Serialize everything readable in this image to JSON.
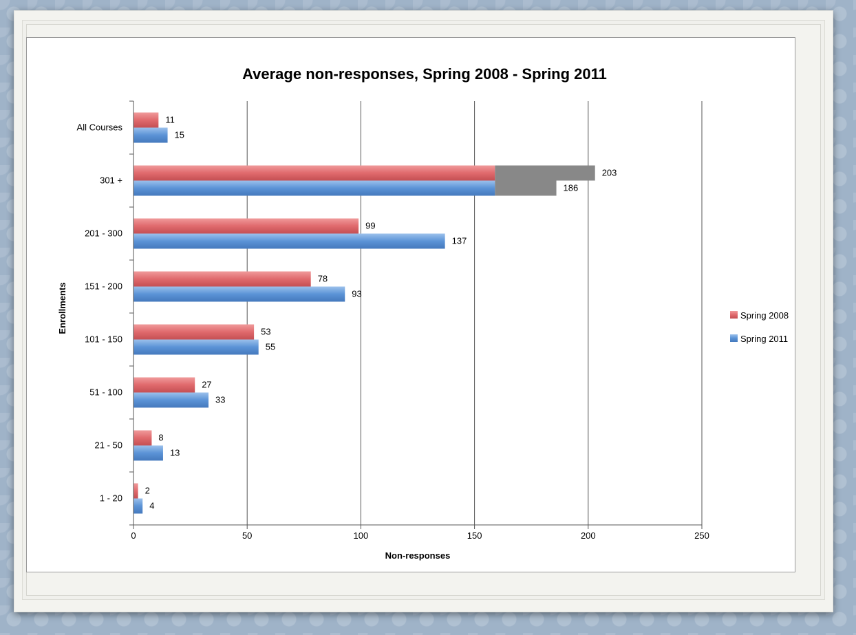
{
  "chart_data": {
    "type": "bar",
    "orientation": "horizontal",
    "title": "Average non-responses, Spring 2008 - Spring 2011",
    "xlabel": "Non-responses",
    "ylabel": "Enrollments",
    "xlim": [
      0,
      250
    ],
    "xticks": [
      "0",
      "50",
      "100",
      "150",
      "200",
      "250"
    ],
    "grid": "vertical",
    "legend_position": "right",
    "categories": [
      "All Courses",
      "301 +",
      "201 - 300",
      "151 - 200",
      "101 - 150",
      "51 - 100",
      "21 - 50",
      "1 -  20"
    ],
    "series": [
      {
        "name": "Spring 2008",
        "color": "#e06a6d",
        "values": [
          11,
          203,
          99,
          78,
          53,
          27,
          8,
          2
        ]
      },
      {
        "name": "Spring 2011",
        "color": "#5b93d6",
        "values": [
          15,
          186,
          137,
          93,
          55,
          33,
          13,
          4
        ]
      }
    ],
    "data_labels": [
      [
        "11",
        "203",
        "99",
        "78",
        "53",
        "27",
        "8",
        "2"
      ],
      [
        "15",
        "186",
        "137",
        "93",
        "55",
        "33",
        "13",
        "4"
      ]
    ],
    "break_color": "#888888",
    "break_value": 159
  }
}
